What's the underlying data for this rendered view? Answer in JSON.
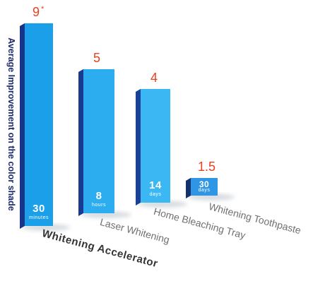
{
  "chart_data": {
    "type": "bar",
    "ylabel": "Average Improvement on the color shade",
    "categories": [
      "Whitening Accelerator",
      "Laser Whitening",
      "Home Bleaching Tray",
      "Whitening Toothpaste"
    ],
    "values": [
      9,
      5,
      4,
      1.5
    ],
    "value_labels": [
      "9",
      "5",
      "4",
      "1.5"
    ],
    "value_notes": [
      "*",
      "",
      "",
      ""
    ],
    "durations": [
      {
        "number": "30",
        "unit": "minutes"
      },
      {
        "number": "8",
        "unit": "hours"
      },
      {
        "number": "14",
        "unit": "days"
      },
      {
        "number": "30",
        "unit": "days"
      }
    ],
    "colors": {
      "bar_face": [
        "#1a9fe8",
        "#2badf0",
        "#3bb8f4",
        "#2f96e6"
      ],
      "bar_side": [
        "#15348a",
        "#183a90",
        "#1a4196",
        "#13306f"
      ],
      "value_label": "#e8401c",
      "axis_label": "#1b2a6b"
    }
  }
}
